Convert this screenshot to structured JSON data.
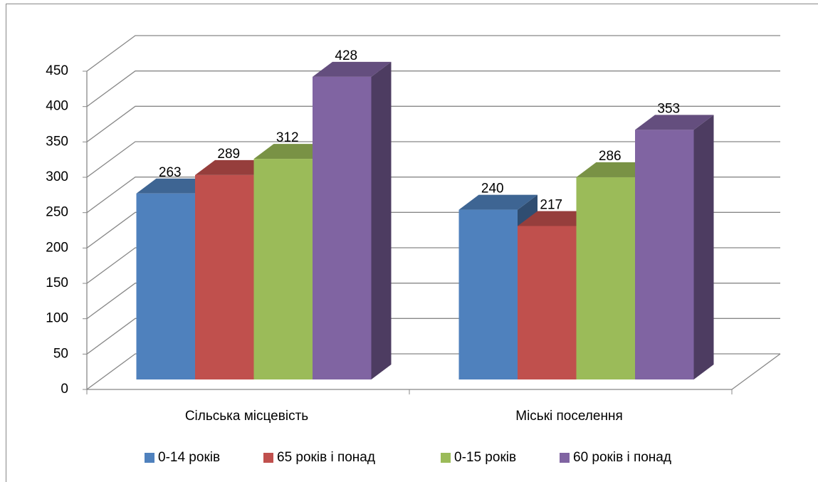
{
  "chart_data": {
    "type": "bar3d",
    "categories": [
      "Сільська місцевість",
      "Міські поселення"
    ],
    "series": [
      {
        "name": "0-14 років",
        "color": "#4f81bd",
        "values": [
          263,
          240
        ]
      },
      {
        "name": "65 років і понад",
        "color": "#c0504d",
        "values": [
          289,
          217
        ]
      },
      {
        "name": "0-15 років",
        "color": "#9bbb59",
        "values": [
          312,
          286
        ]
      },
      {
        "name": "60 років і понад",
        "color": "#8064a2",
        "values": [
          428,
          353
        ]
      }
    ],
    "ylim": [
      0,
      450
    ],
    "yticks": [
      0,
      50,
      100,
      150,
      200,
      250,
      300,
      350,
      400,
      450
    ],
    "grid": true,
    "legend": "bottom"
  }
}
